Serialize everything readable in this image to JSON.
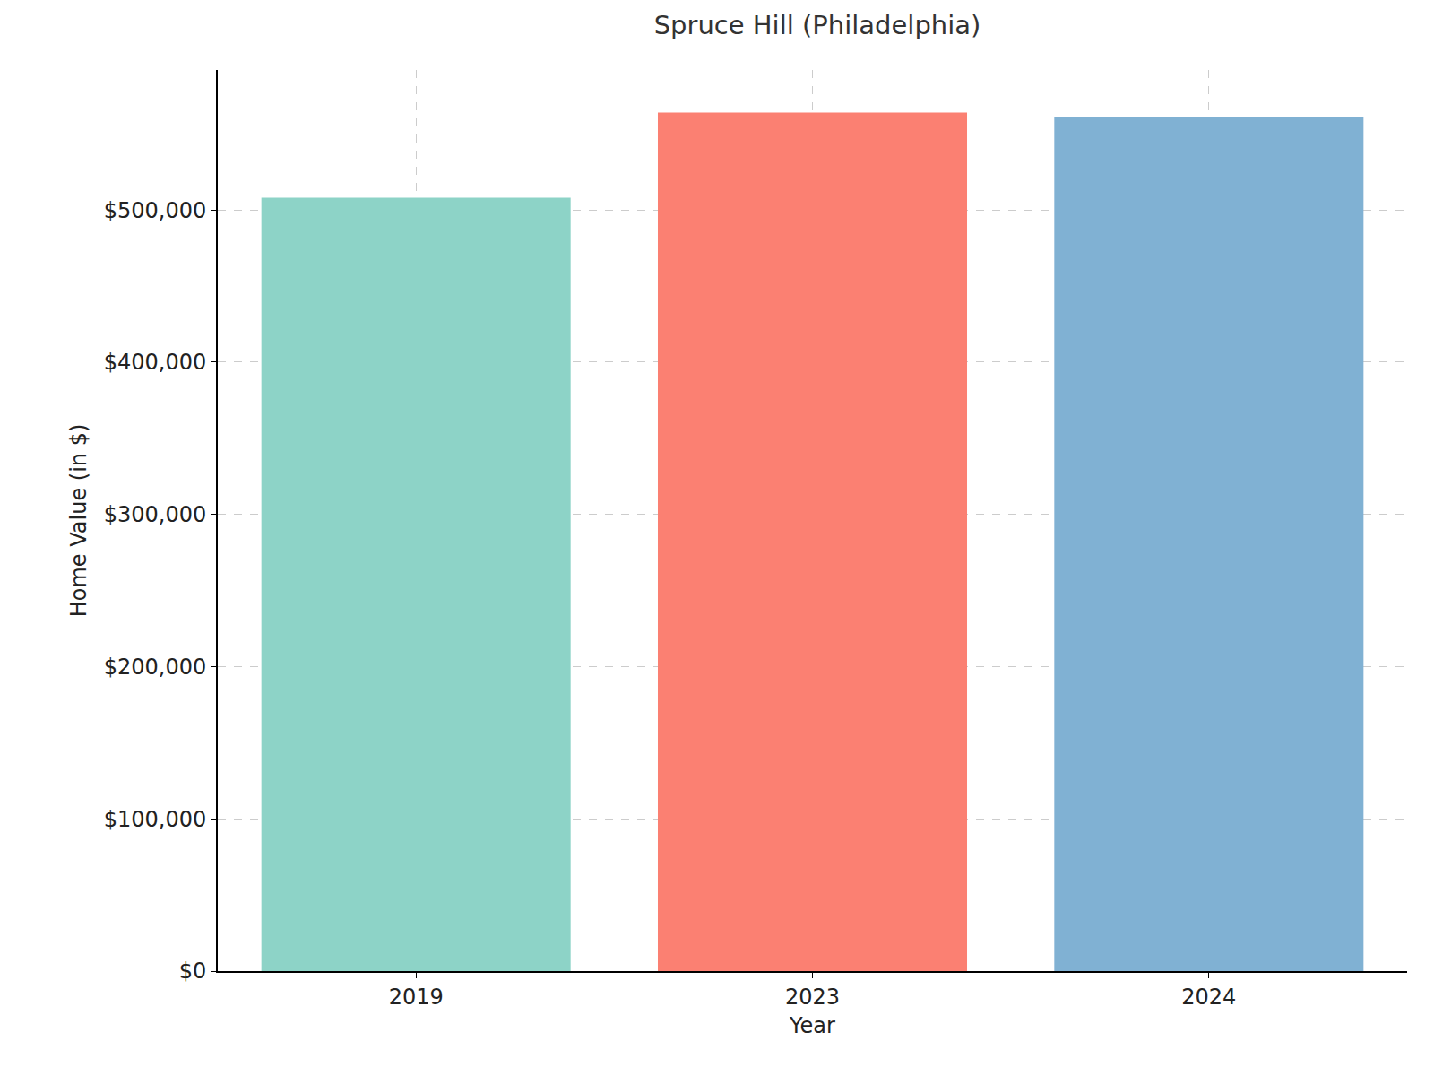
{
  "chart_data": {
    "type": "bar",
    "title": "Spruce Hill (Philadelphia)",
    "x_label": "Year",
    "y_label": "Home Value (in $)",
    "categories": [
      "2019",
      "2023",
      "2024"
    ],
    "values": [
      508000,
      564000,
      561000
    ],
    "colors": [
      "#8dd3c7",
      "#fb8072",
      "#80b1d3"
    ],
    "ylim": [
      0,
      592000
    ],
    "yticks": [
      {
        "value": 0,
        "label": "$0"
      },
      {
        "value": 100000,
        "label": "$100,000"
      },
      {
        "value": 200000,
        "label": "$200,000"
      },
      {
        "value": 300000,
        "label": "$300,000"
      },
      {
        "value": 400000,
        "label": "$400,000"
      },
      {
        "value": 500000,
        "label": "$500,000"
      }
    ],
    "grid": true
  }
}
